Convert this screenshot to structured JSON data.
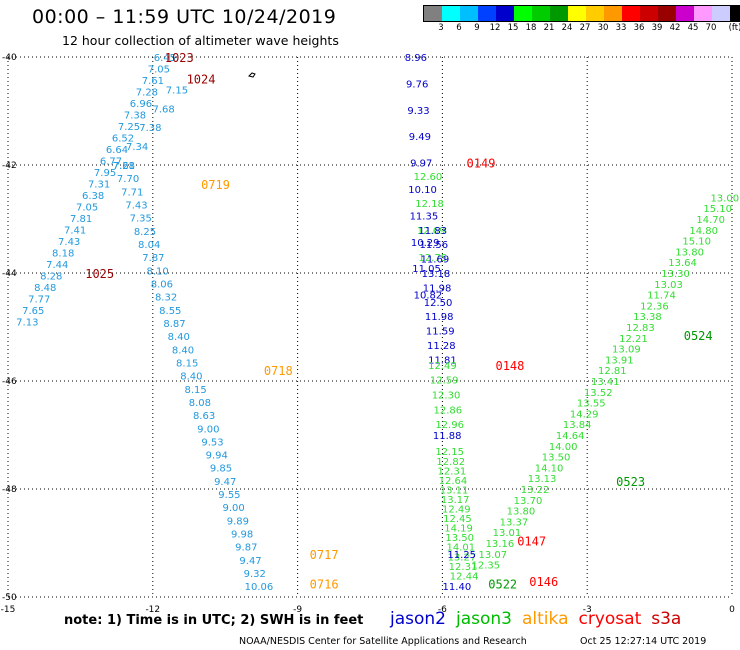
{
  "header": {
    "title": "00:00 – 11:59 UTC 10/24/2019",
    "subtitle": "12 hour collection of altimeter wave heights"
  },
  "legend": {
    "unit": "(ft)",
    "colors": [
      "#808080",
      "#00ffff",
      "#00bfff",
      "#0040ff",
      "#0000cc",
      "#00ff00",
      "#00cc00",
      "#009900",
      "#ffff00",
      "#ffcc00",
      "#ff9900",
      "#ff0000",
      "#cc0000",
      "#990000",
      "#cc00cc",
      "#ff99ff",
      "#ccccff",
      "#000000"
    ],
    "labels": [
      "3",
      "6",
      "9",
      "12",
      "15",
      "18",
      "21",
      "24",
      "27",
      "30",
      "33",
      "36",
      "39",
      "42",
      "45",
      "70",
      "(ft)"
    ]
  },
  "axes": {
    "lon_labels": [
      "-15",
      "-12",
      "-9",
      "-6",
      "-3",
      "0"
    ],
    "lat_labels": [
      "-40",
      "-42",
      "-44",
      "-46",
      "-48",
      "-50"
    ]
  },
  "satellites": [
    {
      "name": "jason2",
      "color": "#0000cc"
    },
    {
      "name": "jason3",
      "color": "#00bb00"
    },
    {
      "name": "altika",
      "color": "#ff9900"
    },
    {
      "name": "cryosat",
      "color": "#ff0000"
    },
    {
      "name": "s3a",
      "color": "#cc0000"
    }
  ],
  "note": "note: 1) Time is in UTC; 2) SWH is in feet",
  "footer": {
    "credit": "NOAA/NESDIS Center for Satellite Applications and Research",
    "timestamp": "Oct 25 12:27:14 UTC 2019"
  },
  "chart_data": {
    "type": "scatter",
    "xlim": [
      -15,
      0
    ],
    "ylim": [
      -50,
      -40
    ],
    "tracks": [
      {
        "sat": "s3a",
        "color": "#2299dd",
        "start": [
          -11.75,
          -40.0
        ],
        "end": [
          -14.6,
          -44.9
        ],
        "values": [
          "6.45",
          "7.05",
          "7.61",
          "7.28",
          "6.96",
          "7.38",
          "7.25",
          "6.52",
          "6.64",
          "6.77",
          "7.95",
          "7.31",
          "6.38",
          "7.05",
          "7.81",
          "7.41",
          "7.43",
          "8.18",
          "7.44",
          "8.28",
          "8.48",
          "7.77",
          "7.65",
          "7.13"
        ]
      },
      {
        "sat": "s3a",
        "color": "#2299dd",
        "start": [
          -11.5,
          -40.6
        ],
        "end": [
          -12.6,
          -42.0
        ],
        "values": [
          "7.15",
          "7.68",
          "7.38",
          "7.34",
          "7.61"
        ]
      },
      {
        "sat": "altika",
        "color": "#2299dd",
        "start": [
          -12.6,
          -42.0
        ],
        "end": [
          -9.8,
          -49.8
        ],
        "values": [
          "7.28",
          "7.70",
          "7.71",
          "7.43",
          "7.35",
          "8.25",
          "8.04",
          "7.87",
          "8.10",
          "8.06",
          "8.32",
          "8.55",
          "8.87",
          "8.40",
          "8.40",
          "8.15",
          "8.40",
          "8.15",
          "8.08",
          "8.63",
          "9.00",
          "9.53",
          "9.94",
          "9.85",
          "9.47",
          "9.55",
          "9.00",
          "9.89",
          "9.98",
          "9.87",
          "9.47",
          "9.32",
          "10.06"
        ]
      },
      {
        "sat": "jason2",
        "color": "#0000cc",
        "start": [
          -6.55,
          -40.0
        ],
        "end": [
          -6.3,
          -44.4
        ],
        "values": [
          "8.96",
          "9.76",
          "9.33",
          "9.49",
          "9.97",
          "10.10",
          "11.35",
          "10.29",
          "11.05",
          "10.82"
        ]
      },
      {
        "sat": "jason3",
        "color": "#33dd33",
        "start": [
          -6.3,
          -42.2
        ],
        "end": [
          -6.2,
          -43.7
        ],
        "values": [
          "12.60",
          "12.18",
          "12.69",
          "12.75"
        ]
      },
      {
        "sat": "jason2",
        "color": "#0000cc",
        "start": [
          -6.2,
          -43.2
        ],
        "end": [
          -6.0,
          -45.6
        ],
        "values": [
          "11.83",
          "11.56",
          "11.69",
          "13.18",
          "11.98",
          "12.50",
          "11.98",
          "11.59",
          "11.28",
          "11.81"
        ]
      },
      {
        "sat": "jason3",
        "color": "#33dd33",
        "start": [
          -6.0,
          -45.7
        ],
        "end": [
          -5.85,
          -46.8
        ],
        "values": [
          "12.49",
          "12.59",
          "12.30",
          "12.86",
          "12.96"
        ]
      },
      {
        "sat": "jason2",
        "color": "#0000cc",
        "start": [
          -5.9,
          -47.0
        ],
        "end": [
          -5.9,
          -47.0
        ],
        "values": [
          "11.88"
        ]
      },
      {
        "sat": "jason3",
        "color": "#33dd33",
        "start": [
          -5.85,
          -47.3
        ],
        "end": [
          -5.55,
          -49.6
        ],
        "values": [
          "12.15",
          "12.82",
          "12.31",
          "12.64",
          "13.11",
          "13.17",
          "12.49",
          "12.45",
          "14.19",
          "13.50",
          "14.01",
          "13.27",
          "12.31",
          "12.44"
        ]
      },
      {
        "sat": "jason2",
        "color": "#0000cc",
        "start": [
          -5.6,
          -49.2
        ],
        "end": [
          -5.7,
          -49.8
        ],
        "values": [
          "11.25",
          "11.40"
        ]
      },
      {
        "sat": "jason3",
        "color": "#33dd33",
        "start": [
          -5.1,
          -49.4
        ],
        "end": [
          -0.15,
          -42.6
        ],
        "values": [
          "12.35",
          "13.07",
          "13.16",
          "13.01",
          "13.37",
          "13.80",
          "13.70",
          "13.22",
          "13.13",
          "14.10",
          "13.50",
          "14.00",
          "14.64",
          "13.84",
          "14.29",
          "13.55",
          "13.52",
          "13.41",
          "12.81",
          "13.91",
          "13.09",
          "12.21",
          "12.83",
          "13.38",
          "12.36",
          "11.74",
          "13.03",
          "13.30",
          "13.64",
          "13.80",
          "15.10",
          "14.80",
          "14.70",
          "15.10",
          "13.00"
        ]
      }
    ],
    "time_labels": [
      {
        "text": "1023",
        "color": "#990000",
        "lon": -11.75,
        "lat": -40.0
      },
      {
        "text": "1024",
        "color": "#990000",
        "lon": -11.3,
        "lat": -40.4
      },
      {
        "text": "1025",
        "color": "#990000",
        "lon": -13.4,
        "lat": -44.0
      },
      {
        "text": "0719",
        "color": "#ff9900",
        "lon": -11.0,
        "lat": -42.35
      },
      {
        "text": "0718",
        "color": "#ff9900",
        "lon": -9.7,
        "lat": -45.8
      },
      {
        "text": "0717",
        "color": "#ff9900",
        "lon": -8.75,
        "lat": -49.2
      },
      {
        "text": "0716",
        "color": "#ff9900",
        "lon": -8.75,
        "lat": -49.75
      },
      {
        "text": "0149",
        "color": "#ff0000",
        "lon": -5.5,
        "lat": -41.95
      },
      {
        "text": "0148",
        "color": "#ff0000",
        "lon": -4.9,
        "lat": -45.7
      },
      {
        "text": "0147",
        "color": "#ff0000",
        "lon": -4.45,
        "lat": -48.95
      },
      {
        "text": "0146",
        "color": "#ff0000",
        "lon": -4.2,
        "lat": -49.7
      },
      {
        "text": "0522",
        "color": "#009900",
        "lon": -5.05,
        "lat": -49.75
      },
      {
        "text": "0523",
        "color": "#009900",
        "lon": -2.4,
        "lat": -47.85
      },
      {
        "text": "0524",
        "color": "#009900",
        "lon": -1.0,
        "lat": -45.15
      }
    ]
  }
}
